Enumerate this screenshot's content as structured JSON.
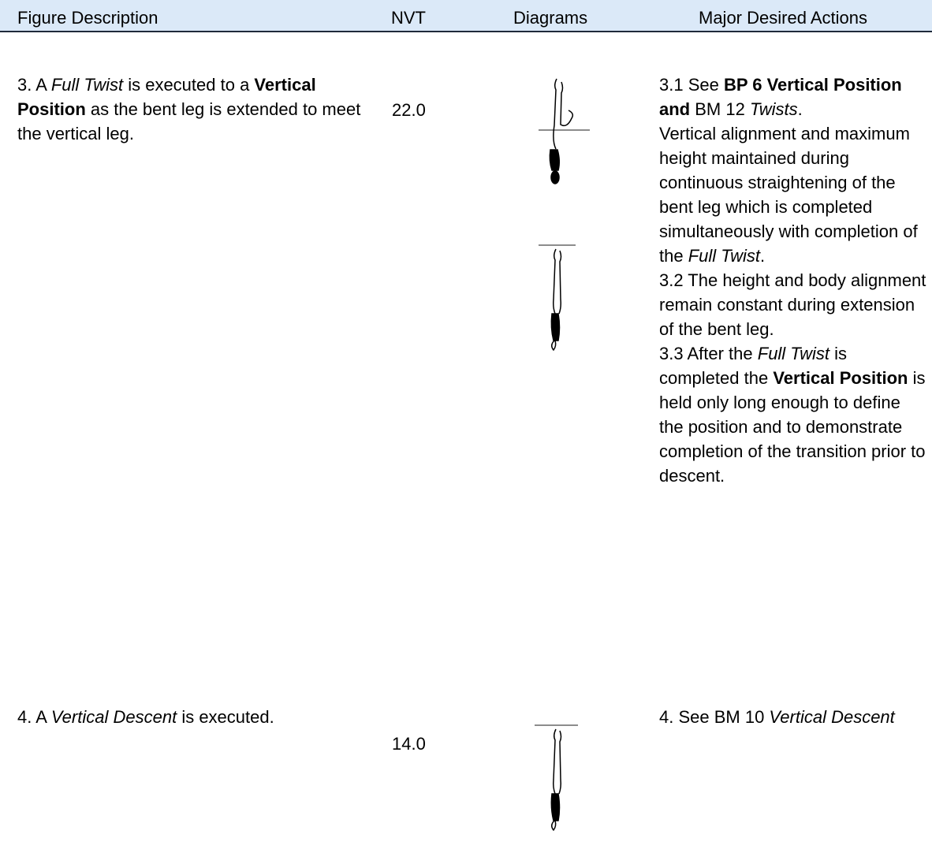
{
  "header": {
    "columns": [
      "Figure Description",
      "NVT",
      "Diagrams",
      "Major Desired Actions"
    ]
  },
  "rows": [
    {
      "description": [
        {
          "text": "3. A "
        },
        {
          "text": "Full Twist",
          "style": "italic"
        },
        {
          "text": " is executed to a "
        },
        {
          "text": "Vertical Position",
          "style": "bold"
        },
        {
          "text": " as the bent leg is extended to meet the vertical leg."
        }
      ],
      "nvt": "22.0",
      "actions": [
        [
          {
            "text": "3.1 See "
          },
          {
            "text": "BP 6 Vertical Position and",
            "style": "bold"
          },
          {
            "text": " BM 12 "
          },
          {
            "text": "Twists",
            "style": "italic"
          },
          {
            "text": "."
          }
        ],
        [
          {
            "text": "Vertical alignment and maximum height maintained during continuous straightening of the bent leg which is completed simultaneously with completion of the "
          },
          {
            "text": "Full Twist",
            "style": "italic"
          },
          {
            "text": "."
          }
        ],
        [
          {
            "text": "3.2 The height and body alignment remain constant during extension of the bent leg."
          }
        ],
        [
          {
            "text": "3.3 After the "
          },
          {
            "text": "Full Twist",
            "style": "italic"
          },
          {
            "text": " is completed the "
          },
          {
            "text": "Vertical Position",
            "style": "bold"
          },
          {
            "text": " is held only long enough to define the position and to demonstrate completion of the transition prior to descent."
          }
        ]
      ]
    },
    {
      "description": [
        {
          "text": "4. A "
        },
        {
          "text": "Vertical Descent",
          "style": "italic"
        },
        {
          "text": " is executed."
        }
      ],
      "nvt": "14.0",
      "actions": [
        [
          {
            "text": "4. See BM 10 "
          },
          {
            "text": "Vertical Descent",
            "style": "italic"
          }
        ]
      ]
    }
  ]
}
